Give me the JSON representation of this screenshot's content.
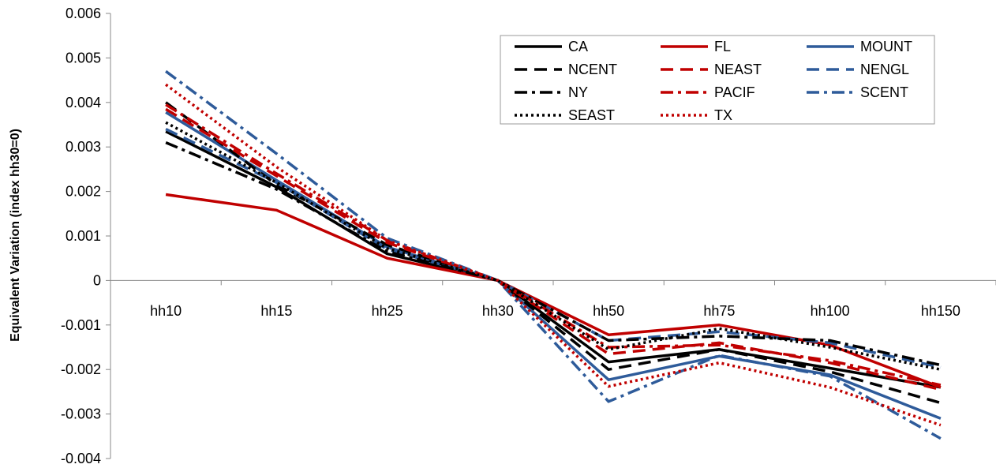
{
  "chart_data": {
    "type": "line",
    "title": "",
    "xlabel": "",
    "ylabel": "Equivalent Variation (index hh30=0)",
    "categories": [
      "hh10",
      "hh15",
      "hh25",
      "hh30",
      "hh50",
      "hh75",
      "hh100",
      "hh150"
    ],
    "ylim": [
      -0.004,
      0.006
    ],
    "yticks": [
      0.006,
      0.005,
      0.004,
      0.003,
      0.002,
      0.001,
      0,
      -0.001,
      -0.002,
      -0.003,
      -0.004
    ],
    "ytick_labels": [
      "0.006",
      "0.005",
      "0.004",
      "0.003",
      "0.002",
      "0.001",
      "0",
      "-0.001",
      "-0.002",
      "-0.003",
      "-0.004"
    ],
    "grid": false,
    "legend_position": "top-right",
    "series": [
      {
        "name": "CA",
        "color": "#000000",
        "dash": "solid",
        "values": [
          0.00335,
          0.0021,
          0.0006,
          0,
          -0.00183,
          -0.00155,
          -0.00197,
          -0.0024
        ]
      },
      {
        "name": "FL",
        "color": "#c00000",
        "dash": "solid",
        "values": [
          0.00193,
          0.00158,
          0.0005,
          0,
          -0.00122,
          -0.001,
          -0.00145,
          -0.0024
        ]
      },
      {
        "name": "MOUNT",
        "color": "#2e5b9a",
        "dash": "solid",
        "values": [
          0.00378,
          0.00225,
          0.00075,
          0,
          -0.00223,
          -0.0017,
          -0.00212,
          -0.0031
        ]
      },
      {
        "name": "NCENT",
        "color": "#000000",
        "dash": "dash",
        "values": [
          0.004,
          0.00215,
          0.0008,
          0,
          -0.002,
          -0.00155,
          -0.00205,
          -0.00275
        ]
      },
      {
        "name": "NEAST",
        "color": "#c00000",
        "dash": "dash",
        "values": [
          0.00385,
          0.00235,
          0.00085,
          0,
          -0.00165,
          -0.0014,
          -0.00185,
          -0.00245
        ]
      },
      {
        "name": "NENGL",
        "color": "#2e5b9a",
        "dash": "dash",
        "values": [
          0.0034,
          0.0022,
          0.0007,
          0,
          -0.00135,
          -0.00115,
          -0.0014,
          -0.00195
        ]
      },
      {
        "name": "NY",
        "color": "#000000",
        "dash": "dashdot",
        "values": [
          0.0031,
          0.00205,
          0.00065,
          0,
          -0.00135,
          -0.00125,
          -0.00135,
          -0.0019
        ]
      },
      {
        "name": "PACIF",
        "color": "#c00000",
        "dash": "dashdot",
        "values": [
          0.00395,
          0.0024,
          0.0009,
          0,
          -0.0015,
          -0.00145,
          -0.0018,
          -0.00235
        ]
      },
      {
        "name": "SCENT",
        "color": "#2e5b9a",
        "dash": "dashdot",
        "values": [
          0.0047,
          0.00285,
          0.00095,
          0,
          -0.00272,
          -0.00168,
          -0.00215,
          -0.00355
        ]
      },
      {
        "name": "SEAST",
        "color": "#000000",
        "dash": "dot",
        "values": [
          0.00355,
          0.0022,
          0.00072,
          0,
          -0.00155,
          -0.00108,
          -0.0015,
          -0.002
        ]
      },
      {
        "name": "TX",
        "color": "#c00000",
        "dash": "dot",
        "values": [
          0.0044,
          0.00255,
          0.0009,
          0,
          -0.00238,
          -0.00185,
          -0.0024,
          -0.00325
        ]
      }
    ]
  }
}
